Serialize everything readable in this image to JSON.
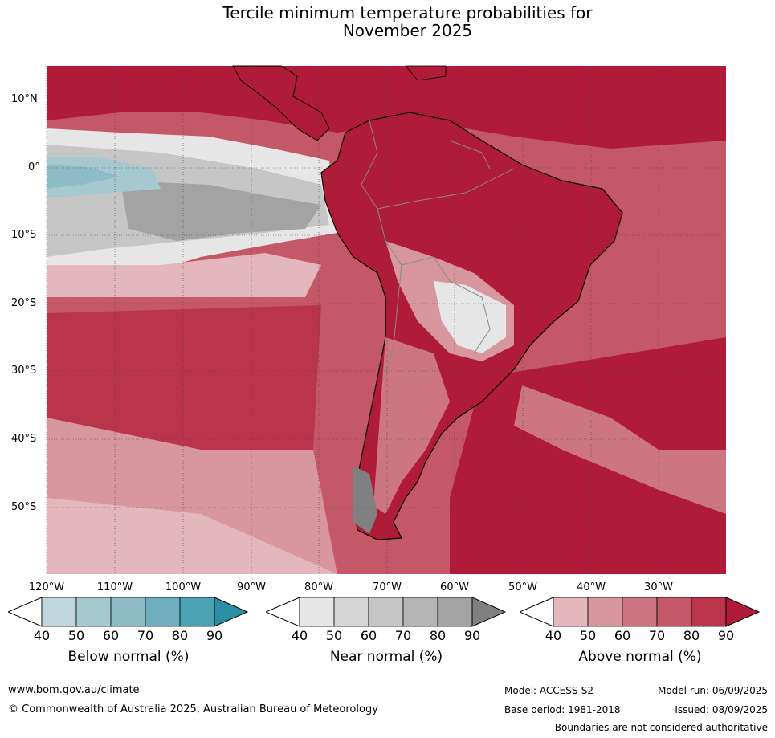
{
  "title_line1": "Tercile minimum temperature probabilities for",
  "title_line2": "November 2025",
  "lat_labels": [
    "10°N",
    "0°",
    "10°S",
    "20°S",
    "30°S",
    "40°S",
    "50°S"
  ],
  "lon_labels": [
    "120°W",
    "110°W",
    "100°W",
    "90°W",
    "80°W",
    "70°W",
    "60°W",
    "50°W",
    "40°W",
    "30°W"
  ],
  "colorbars": [
    {
      "title": "Below normal (%)",
      "ticks": [
        "40",
        "50",
        "60",
        "70",
        "80",
        "90"
      ],
      "colors": [
        "#bfd6dc",
        "#a6c8cf",
        "#8dbcc5",
        "#6fafbd",
        "#4ba2b2",
        "#2b8ea2"
      ]
    },
    {
      "title": "Near normal (%)",
      "ticks": [
        "40",
        "50",
        "60",
        "70",
        "80",
        "90"
      ],
      "colors": [
        "#e6e6e6",
        "#d5d5d5",
        "#c6c6c6",
        "#b5b5b5",
        "#a3a3a3",
        "#808080"
      ]
    },
    {
      "title": "Above normal (%)",
      "ticks": [
        "40",
        "50",
        "60",
        "70",
        "80",
        "90"
      ],
      "colors": [
        "#e3b7bd",
        "#d8979f",
        "#cd7681",
        "#c55866",
        "#ba354a",
        "#b01c37"
      ]
    }
  ],
  "footer": {
    "website": "www.bom.gov.au/climate",
    "copyright": "© Commonwealth of Australia 2025, Australian Bureau of Meteorology",
    "model": "Model: ACCESS-S2",
    "base_period": "Base period: 1981-2018",
    "model_run": "Model run: 06/09/2025",
    "issued": "Issued: 08/09/2025",
    "disclaimer": "Boundaries are not considered authoritative"
  }
}
